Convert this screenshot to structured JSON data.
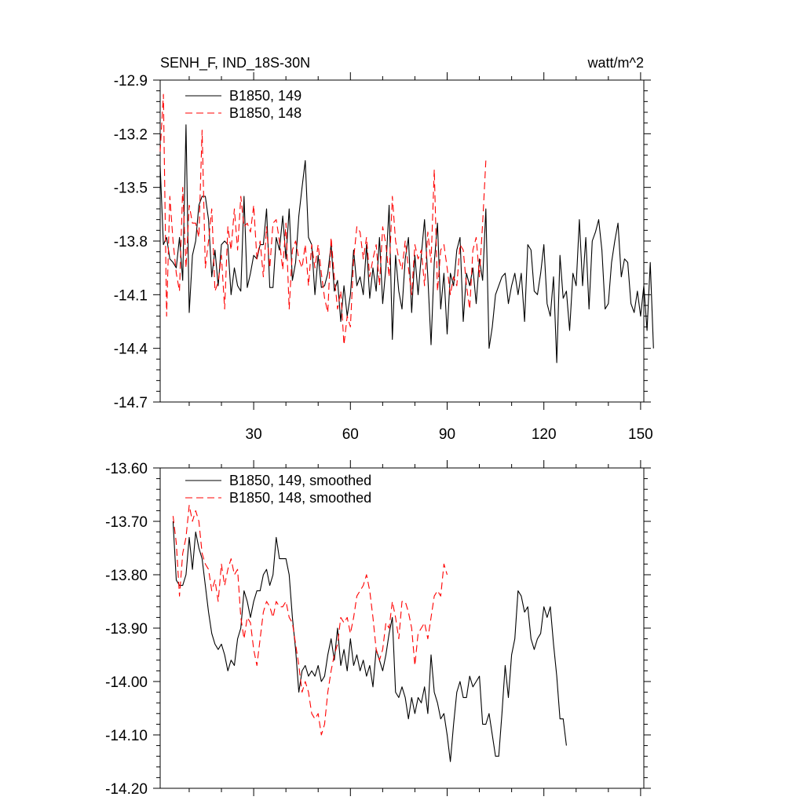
{
  "chart_data": [
    {
      "type": "line",
      "title_left": "SENH_F, IND_18S-30N",
      "title_right": "watt/m^2",
      "xlim": [
        1,
        151
      ],
      "ylim": [
        -14.7,
        -12.9
      ],
      "y_ticks": [
        "-12.9",
        "-13.2",
        "-13.5",
        "-13.8",
        "-14.1",
        "-14.4",
        "-14.7"
      ],
      "y_tick_values": [
        -12.9,
        -13.2,
        -13.5,
        -13.8,
        -14.1,
        -14.4,
        -14.7
      ],
      "x_ticks": [
        "30",
        "60",
        "90",
        "120",
        "150"
      ],
      "x_tick_values": [
        30,
        60,
        90,
        120,
        150
      ],
      "legend_location": "top-left",
      "series": [
        {
          "name": "B1850, 149",
          "color": "#000000",
          "dash": "solid",
          "x_start": 1,
          "values": [
            -13.38,
            -13.82,
            -13.78,
            -13.9,
            -13.92,
            -13.95,
            -13.78,
            -14.02,
            -13.15,
            -14.2,
            -13.88,
            -13.8,
            -13.6,
            -13.55,
            -13.55,
            -13.68,
            -14.0,
            -13.85,
            -14.05,
            -13.82,
            -13.8,
            -13.82,
            -14.1,
            -13.95,
            -14.05,
            -14.08,
            -13.55,
            -14.06,
            -13.98,
            -13.88,
            -13.9,
            -13.82,
            -13.82,
            -13.62,
            -14.06,
            -14.06,
            -13.78,
            -13.85,
            -13.66,
            -13.9,
            -13.62,
            -14.02,
            -13.92,
            -13.66,
            -13.5,
            -13.35,
            -13.78,
            -13.82,
            -14.1,
            -13.88,
            -14.06,
            -14.05,
            -13.98,
            -13.82,
            -14.08,
            -14.02,
            -14.25,
            -14.05,
            -14.22,
            -14.1,
            -13.85,
            -14.05,
            -14.0,
            -14.1,
            -13.82,
            -14.12,
            -13.95,
            -14.08,
            -13.78,
            -14.15,
            -13.95,
            -13.6,
            -14.35,
            -13.88,
            -14.08,
            -14.18,
            -13.9,
            -13.78,
            -14.2,
            -13.88,
            -14.1,
            -13.88,
            -13.68,
            -14.0,
            -14.38,
            -13.92,
            -13.7,
            -14.18,
            -13.98,
            -14.32,
            -13.98,
            -14.05,
            -13.85,
            -13.78,
            -14.25,
            -13.98,
            -14.05,
            -13.95,
            -14.15,
            -13.9,
            -14.02,
            -13.62,
            -14.4,
            -14.28,
            -14.1,
            -14.05,
            -14.0,
            -13.98,
            -14.15,
            -14.05,
            -13.98,
            -14.1,
            -13.98,
            -14.25,
            -13.82,
            -13.85,
            -14.08,
            -14.1,
            -13.98,
            -13.82,
            -14.15,
            -14.22,
            -14.0,
            -14.48,
            -13.88,
            -14.12,
            -14.08,
            -14.3,
            -13.98,
            -14.05,
            -13.68,
            -14.05,
            -13.78,
            -14.18,
            -13.8,
            -13.75,
            -13.68,
            -13.85,
            -14.18,
            -14.15,
            -13.92,
            -13.8,
            -13.7,
            -14.0,
            -13.9,
            -13.92,
            -14.15,
            -14.2,
            -14.08,
            -14.22,
            -14.05,
            -14.3,
            -13.92,
            -14.4
          ]
        },
        {
          "name": "B1850, 148",
          "color": "#ff0000",
          "dash": "dashed",
          "x_start": 1,
          "values": [
            -13.3,
            -12.98,
            -14.22,
            -13.55,
            -13.8,
            -13.98,
            -14.08,
            -13.5,
            -13.95,
            -13.6,
            -13.7,
            -13.7,
            -13.78,
            -13.18,
            -13.95,
            -13.8,
            -13.62,
            -14.08,
            -14.03,
            -13.88,
            -14.18,
            -13.72,
            -13.85,
            -13.62,
            -13.85,
            -13.55,
            -13.72,
            -13.7,
            -13.75,
            -13.6,
            -13.9,
            -13.8,
            -14.0,
            -13.72,
            -13.95,
            -13.7,
            -13.68,
            -13.8,
            -13.96,
            -13.7,
            -14.18,
            -13.85,
            -13.8,
            -13.9,
            -13.95,
            -13.82,
            -14.05,
            -13.82,
            -13.95,
            -13.82,
            -13.98,
            -14.12,
            -14.2,
            -13.78,
            -14.0,
            -14.18,
            -14.08,
            -14.38,
            -14.22,
            -14.28,
            -13.9,
            -13.72,
            -13.75,
            -13.9,
            -13.78,
            -14.0,
            -13.9,
            -13.82,
            -14.05,
            -13.72,
            -13.82,
            -14.0,
            -13.55,
            -13.8,
            -13.9,
            -13.96,
            -13.8,
            -13.95,
            -14.1,
            -13.82,
            -13.9,
            -13.85,
            -14.05,
            -13.75,
            -13.92,
            -13.4,
            -14.08,
            -13.85,
            -13.82,
            -13.95,
            -14.1,
            -14.0,
            -14.05,
            -13.82,
            -13.85,
            -14.05,
            -14.18,
            -13.85,
            -13.78,
            -14.0,
            -13.7,
            -13.35
          ]
        }
      ]
    },
    {
      "type": "line",
      "xlim": [
        1,
        151
      ],
      "ylim": [
        -14.2,
        -13.6
      ],
      "y_ticks": [
        "-13.60",
        "-13.70",
        "-13.80",
        "-13.90",
        "-14.00",
        "-14.10",
        "-14.20"
      ],
      "y_tick_values": [
        -13.6,
        -13.7,
        -13.8,
        -13.9,
        -14.0,
        -14.1,
        -14.2
      ],
      "legend_location": "top-left",
      "series": [
        {
          "name": "B1850, 149, smoothed",
          "color": "#000000",
          "dash": "solid",
          "x_start": 5,
          "values": [
            -13.7,
            -13.81,
            -13.82,
            -13.82,
            -13.8,
            -13.73,
            -13.79,
            -13.72,
            -13.75,
            -13.77,
            -13.82,
            -13.87,
            -13.91,
            -13.93,
            -13.94,
            -13.93,
            -13.95,
            -13.98,
            -13.96,
            -13.97,
            -13.92,
            -13.9,
            -13.83,
            -13.85,
            -13.88,
            -13.85,
            -13.83,
            -13.83,
            -13.8,
            -13.79,
            -13.82,
            -13.8,
            -13.73,
            -13.77,
            -13.77,
            -13.77,
            -13.8,
            -13.88,
            -13.94,
            -14.02,
            -13.98,
            -13.97,
            -13.99,
            -13.98,
            -13.99,
            -13.97,
            -14.0,
            -13.99,
            -13.95,
            -13.92,
            -13.96,
            -13.9,
            -13.97,
            -13.94,
            -13.98,
            -13.92,
            -13.97,
            -13.95,
            -13.98,
            -13.96,
            -13.99,
            -13.97,
            -14.01,
            -13.94,
            -13.96,
            -13.98,
            -13.95,
            -13.91,
            -13.88,
            -14.02,
            -14.03,
            -14.01,
            -14.03,
            -14.07,
            -14.03,
            -14.06,
            -14.03,
            -14.04,
            -14.01,
            -14.06,
            -13.95,
            -14.02,
            -14.04,
            -14.07,
            -14.06,
            -14.1,
            -14.15,
            -14.08,
            -14.02,
            -14.0,
            -14.03,
            -14.03,
            -13.99,
            -14.01,
            -14.0,
            -13.99,
            -14.08,
            -14.08,
            -14.06,
            -14.1,
            -14.14,
            -14.14,
            -14.06,
            -13.97,
            -14.03,
            -13.95,
            -13.92,
            -13.83,
            -13.84,
            -13.87,
            -13.86,
            -13.92,
            -13.94,
            -13.92,
            -13.91,
            -13.86,
            -13.88,
            -13.86,
            -13.93,
            -13.99,
            -14.07,
            -14.07,
            -14.12
          ]
        },
        {
          "name": "B1850, 148, smoothed",
          "color": "#ff0000",
          "dash": "dashed",
          "x_start": 5,
          "values": [
            -13.69,
            -13.74,
            -13.84,
            -13.76,
            -13.73,
            -13.67,
            -13.7,
            -13.68,
            -13.7,
            -13.76,
            -13.78,
            -13.79,
            -13.83,
            -13.81,
            -13.85,
            -13.78,
            -13.82,
            -13.79,
            -13.77,
            -13.8,
            -13.79,
            -13.88,
            -13.92,
            -13.88,
            -13.89,
            -13.94,
            -13.97,
            -13.92,
            -13.87,
            -13.85,
            -13.86,
            -13.88,
            -13.85,
            -13.86,
            -13.86,
            -13.85,
            -13.88,
            -13.89,
            -13.93,
            -13.97,
            -14.02,
            -14.0,
            -14.02,
            -14.06,
            -14.07,
            -14.06,
            -14.1,
            -14.08,
            -14.02,
            -13.98,
            -13.95,
            -13.93,
            -13.88,
            -13.89,
            -13.88,
            -13.91,
            -13.88,
            -13.84,
            -13.83,
            -13.82,
            -13.8,
            -13.83,
            -13.88,
            -13.94,
            -13.96,
            -13.94,
            -13.89,
            -13.9,
            -13.85,
            -13.88,
            -13.92,
            -13.85,
            -13.85,
            -13.87,
            -13.9,
            -13.97,
            -13.91,
            -13.9,
            -13.89,
            -13.92,
            -13.88,
            -13.84,
            -13.83,
            -13.84,
            -13.78,
            -13.8
          ]
        }
      ]
    }
  ]
}
